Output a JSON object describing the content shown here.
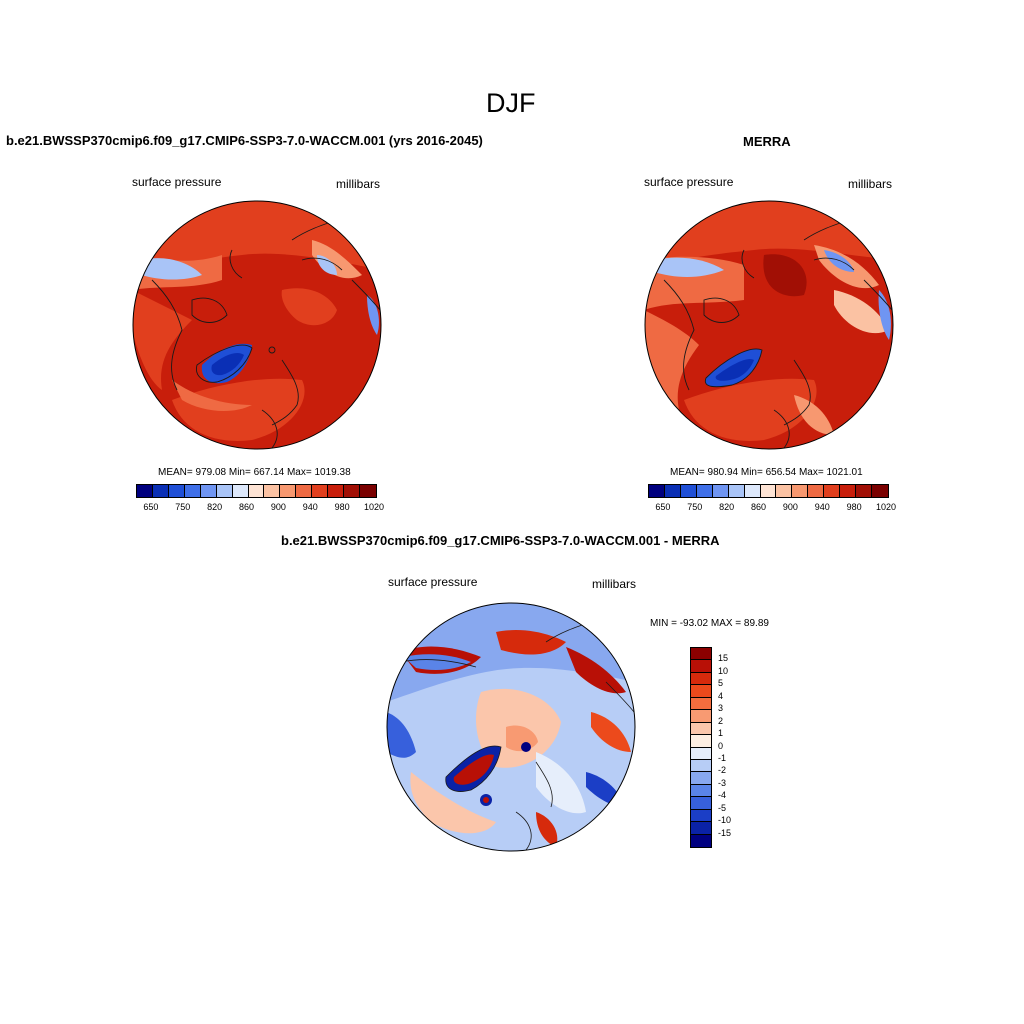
{
  "figure": {
    "title": "DJF"
  },
  "panels": [
    {
      "id": "model",
      "title": "b.e21.BWSSP370cmip6.f09_g17.CMIP6-SSP3-7.0-WACCM.001 (yrs 2016-2045)",
      "left_label": "surface pressure",
      "right_label": "millibars",
      "stats": "MEAN= 979.08  Min= 667.14  Max= 1019.38",
      "colorbar_ticks": [
        "650",
        "750",
        "820",
        "860",
        "900",
        "940",
        "980",
        "1020"
      ]
    },
    {
      "id": "merra",
      "title": "MERRA",
      "left_label": "surface pressure",
      "right_label": "millibars",
      "stats": "MEAN= 980.94  Min= 656.54  Max= 1021.01",
      "colorbar_ticks": [
        "650",
        "750",
        "820",
        "860",
        "900",
        "940",
        "980",
        "1020"
      ]
    },
    {
      "id": "diff",
      "title": "b.e21.BWSSP370cmip6.f09_g17.CMIP6-SSP3-7.0-WACCM.001 - MERRA",
      "left_label": "surface pressure",
      "right_label": "millibars",
      "stats": "MIN = -93.02 MAX =  89.89",
      "colorbar_ticks": [
        "15",
        "10",
        "5",
        "4",
        "3",
        "2",
        "1",
        "0",
        "-1",
        "-2",
        "-3",
        "-4",
        "-5",
        "-10",
        "-15"
      ]
    }
  ],
  "colors": {
    "abs_scale": [
      "#00007f",
      "#0a2fb5",
      "#1f4fd6",
      "#3f6fe8",
      "#6f95f2",
      "#a9c4f7",
      "#dde8fb",
      "#fde3d4",
      "#fbc2a3",
      "#f79870",
      "#ef6a43",
      "#e13f1e",
      "#c81e0b",
      "#a10f05",
      "#7a0000"
    ],
    "diff_scale": [
      "#8b0000",
      "#b81006",
      "#d62a0c",
      "#ec4a1c",
      "#f46d3e",
      "#f89a72",
      "#fbc6ab",
      "#fdeee2",
      "#e6eefb",
      "#b7cdf6",
      "#88a8ef",
      "#5a84e8",
      "#3760dc",
      "#1b3ec6",
      "#0a22a6",
      "#000080"
    ]
  }
}
